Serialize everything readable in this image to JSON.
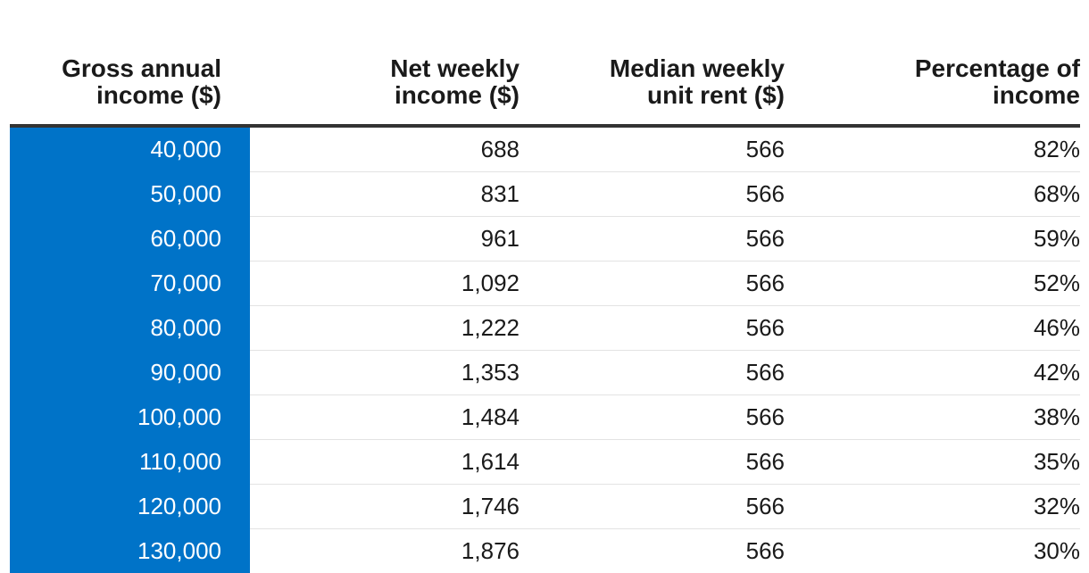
{
  "chart_data": {
    "type": "table",
    "columns": [
      {
        "line1": "Gross annual",
        "line2": "income ($)"
      },
      {
        "line1": "Net weekly",
        "line2": "income ($)"
      },
      {
        "line1": "Median weekly",
        "line2": "unit rent ($)"
      },
      {
        "line1": "Percentage of",
        "line2": "income"
      }
    ],
    "rows": [
      [
        "40,000",
        "688",
        "566",
        "82%"
      ],
      [
        "50,000",
        "831",
        "566",
        "68%"
      ],
      [
        "60,000",
        "961",
        "566",
        "59%"
      ],
      [
        "70,000",
        "1,092",
        "566",
        "52%"
      ],
      [
        "80,000",
        "1,222",
        "566",
        "46%"
      ],
      [
        "90,000",
        "1,353",
        "566",
        "42%"
      ],
      [
        "100,000",
        "1,484",
        "566",
        "38%"
      ],
      [
        "110,000",
        "1,614",
        "566",
        "35%"
      ],
      [
        "120,000",
        "1,746",
        "566",
        "32%"
      ],
      [
        "130,000",
        "1,876",
        "566",
        "30%"
      ]
    ],
    "colors": {
      "first_column_bg": "#0073c8",
      "first_column_text": "#ffffff",
      "header_rule": "#333333",
      "row_rule": "#e3e3e3"
    }
  }
}
